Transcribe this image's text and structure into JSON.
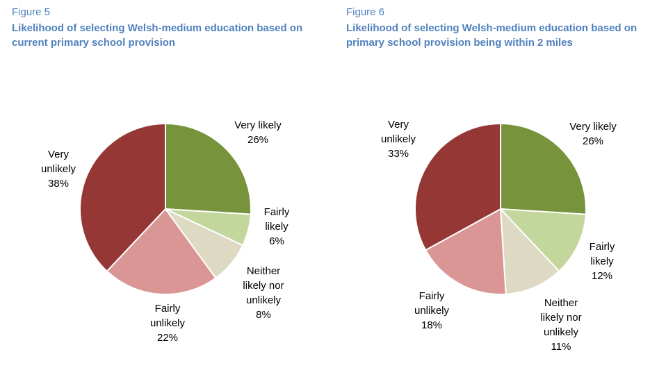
{
  "chart_data": [
    {
      "type": "pie",
      "figure_label": "Figure 5",
      "title": "Likelihood of selecting Welsh-medium education based on current primary school provision",
      "slices": [
        {
          "label": "Very likely",
          "value": 26,
          "value_text": "26%",
          "color": "#77933c"
        },
        {
          "label": "Fairly likely",
          "value": 6,
          "value_text": "6%",
          "color": "#c3d69b"
        },
        {
          "label": "Neither likely nor unlikely",
          "value": 8,
          "value_text": "8%",
          "color": "#ddd9c3"
        },
        {
          "label": "Fairly unlikely",
          "value": 22,
          "value_text": "22%",
          "color": "#d99694"
        },
        {
          "label": "Very unlikely",
          "value": 38,
          "value_text": "38%",
          "color": "#953735"
        }
      ]
    },
    {
      "type": "pie",
      "figure_label": "Figure 6",
      "title": "Likelihood of selecting Welsh-medium education based on primary school provision being within 2 miles",
      "slices": [
        {
          "label": "Very likely",
          "value": 26,
          "value_text": "26%",
          "color": "#77933c"
        },
        {
          "label": "Fairly likely",
          "value": 12,
          "value_text": "12%",
          "color": "#c3d69b"
        },
        {
          "label": "Neither likely nor unlikely",
          "value": 11,
          "value_text": "11%",
          "color": "#ddd9c3"
        },
        {
          "label": "Fairly unlikely",
          "value": 18,
          "value_text": "18%",
          "color": "#d99694"
        },
        {
          "label": "Very unlikely",
          "value": 33,
          "value_text": "33%",
          "color": "#953735"
        }
      ]
    }
  ]
}
